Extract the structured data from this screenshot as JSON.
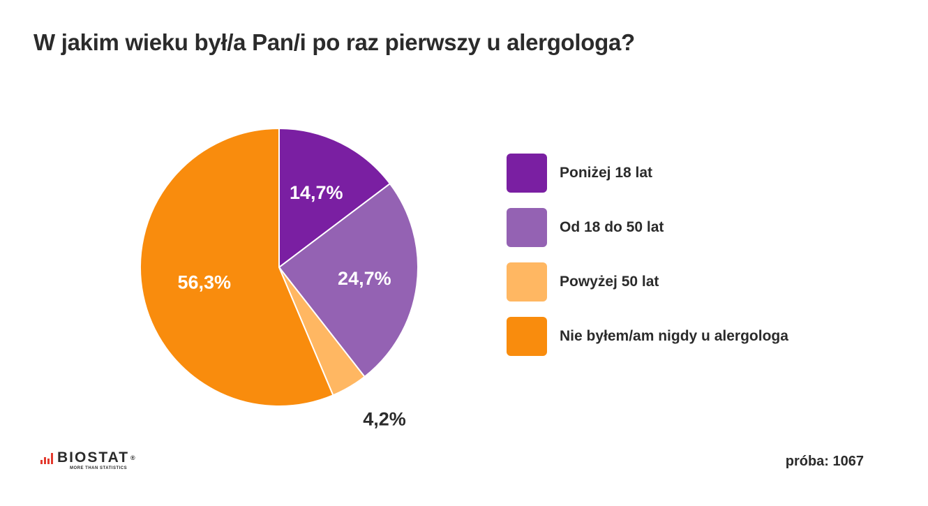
{
  "title": "W jakim wieku był/a Pan/i po raz pierwszy u alergologa?",
  "chart_data": {
    "type": "pie",
    "title": "W jakim wieku był/a Pan/i po raz pierwszy u alergologa?",
    "slices": [
      {
        "label": "Poniżej 18 lat",
        "value": 14.7,
        "value_label": "14,7%",
        "color": "#7a1fa2",
        "label_color": "#ffffff"
      },
      {
        "label": "Od 18 do 50 lat",
        "value": 24.7,
        "value_label": "24,7%",
        "color": "#9462b3",
        "label_color": "#ffffff"
      },
      {
        "label": "Powyżej 50 lat",
        "value": 4.2,
        "value_label": "4,2%",
        "color": "#ffb762",
        "label_color": "#2b2b2b"
      },
      {
        "label": "Nie byłem/am nigdy u alergologa",
        "value": 56.3,
        "value_label": "56,3%",
        "color": "#f98c0d",
        "label_color": "#ffffff"
      }
    ],
    "start_angle": "12 o'clock",
    "direction": "clockwise",
    "legend_position": "right"
  },
  "footer": {
    "brand": "BIOSTAT",
    "brand_mark": "®",
    "tagline": "MORE THAN STATISTICS",
    "sample_text": "próba: 1067"
  }
}
